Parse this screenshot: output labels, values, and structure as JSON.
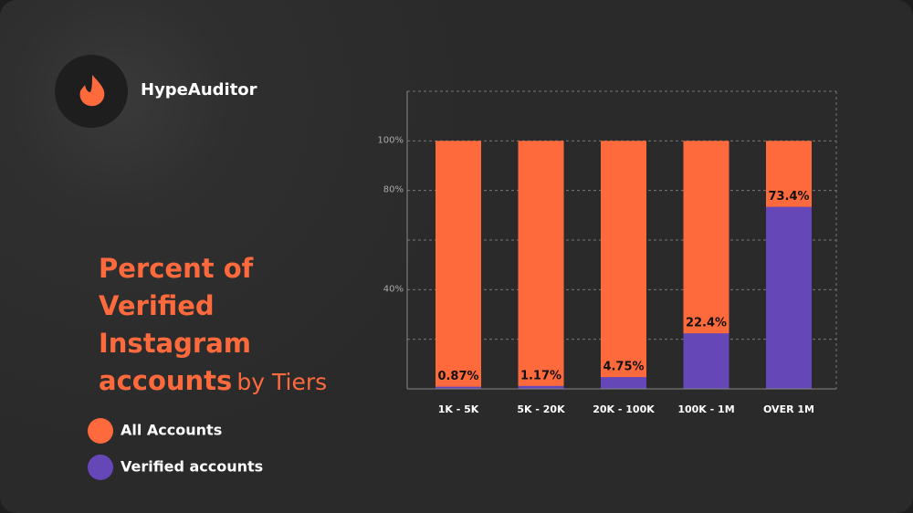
{
  "brand": "HypeAuditor",
  "chart_data": {
    "type": "bar",
    "title": "Percent of Verified Instagram accounts",
    "subtitle": "by Tiers",
    "categories": [
      "1K - 5K",
      "5K - 20K",
      "20K - 100K",
      "100K - 1M",
      "OVER 1M"
    ],
    "series": [
      {
        "name": "All Accounts",
        "color": "#ff6a3d",
        "values": [
          100,
          100,
          100,
          100,
          100
        ]
      },
      {
        "name": "Verified accounts",
        "color": "#6547b8",
        "values": [
          0.87,
          1.17,
          4.75,
          22.4,
          73.4
        ],
        "value_labels": [
          "0.87%",
          "1.17%",
          "4.75%",
          "22.4%",
          "73.4%"
        ]
      }
    ],
    "ylim": [
      0,
      120
    ],
    "yticks": [
      {
        "value": 40,
        "label": "40%"
      },
      {
        "value": 80,
        "label": "80%"
      },
      {
        "value": 100,
        "label": "100%"
      }
    ],
    "ygrid": [
      20,
      40,
      60,
      80,
      100
    ],
    "grid": true
  }
}
